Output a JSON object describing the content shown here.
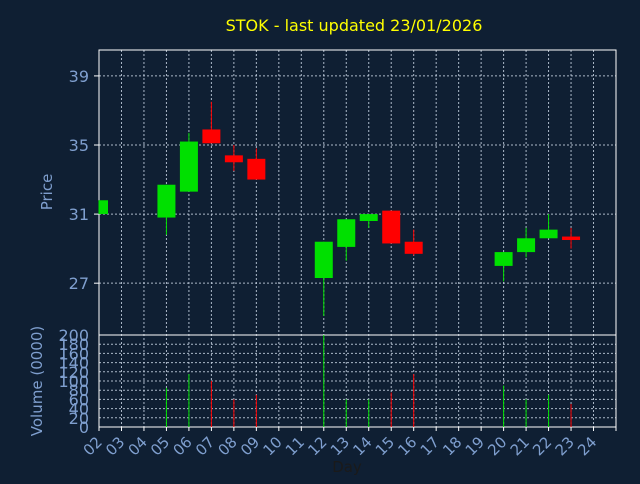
{
  "colors": {
    "background": "#0f1f33",
    "frame": "#ffffff",
    "grid": "#c8d4e4",
    "title": "#ffff00",
    "label": "#7f9fcf",
    "up": "#00e000",
    "down": "#ff0000"
  },
  "chart_data": {
    "type": "candlestick",
    "title": "STOK - last updated 23/01/2026",
    "xlabel": "Day",
    "ylabel_price": "Price",
    "ylabel_volume": "Volume (0000)",
    "x_ticks": [
      "02",
      "03",
      "04",
      "05",
      "06",
      "07",
      "08",
      "09",
      "10",
      "11",
      "12",
      "13",
      "14",
      "15",
      "16",
      "17",
      "18",
      "19",
      "20",
      "21",
      "22",
      "23",
      "24"
    ],
    "price_ticks": [
      27,
      31,
      35,
      39
    ],
    "price_range": [
      24.0,
      40.5
    ],
    "volume_ticks": [
      0,
      20,
      40,
      60,
      80,
      100,
      120,
      140,
      160,
      180,
      200
    ],
    "volume_range": [
      0,
      200
    ],
    "grid": true,
    "candles": [
      {
        "day": "02",
        "open": 31.0,
        "close": 31.8,
        "high": 31.8,
        "low": 31.0,
        "volume": 0
      },
      {
        "day": "05",
        "open": 30.8,
        "close": 32.7,
        "high": 32.7,
        "low": 29.8,
        "volume": 85
      },
      {
        "day": "06",
        "open": 32.3,
        "close": 35.2,
        "high": 35.7,
        "low": 32.3,
        "volume": 115
      },
      {
        "day": "07",
        "open": 35.9,
        "close": 35.1,
        "high": 37.5,
        "low": 35.1,
        "volume": 100
      },
      {
        "day": "08",
        "open": 34.4,
        "close": 34.0,
        "high": 35.0,
        "low": 33.5,
        "volume": 60
      },
      {
        "day": "09",
        "open": 34.2,
        "close": 33.0,
        "high": 34.8,
        "low": 33.0,
        "volume": 70
      },
      {
        "day": "12",
        "open": 27.3,
        "close": 29.4,
        "high": 29.4,
        "low": 25.1,
        "volume": 200
      },
      {
        "day": "13",
        "open": 29.1,
        "close": 30.7,
        "high": 30.7,
        "low": 28.3,
        "volume": 60
      },
      {
        "day": "14",
        "open": 30.6,
        "close": 31.0,
        "high": 31.0,
        "low": 30.2,
        "volume": 60
      },
      {
        "day": "15",
        "open": 31.2,
        "close": 29.3,
        "high": 31.2,
        "low": 29.3,
        "volume": 75
      },
      {
        "day": "16",
        "open": 29.4,
        "close": 28.7,
        "high": 30.1,
        "low": 28.6,
        "volume": 115
      },
      {
        "day": "20",
        "open": 28.0,
        "close": 28.8,
        "high": 28.8,
        "low": 27.1,
        "volume": 90
      },
      {
        "day": "21",
        "open": 28.8,
        "close": 29.6,
        "high": 30.2,
        "low": 28.5,
        "volume": 60
      },
      {
        "day": "22",
        "open": 29.6,
        "close": 30.1,
        "high": 31.0,
        "low": 29.6,
        "volume": 70
      },
      {
        "day": "23",
        "open": 29.7,
        "close": 29.5,
        "high": 30.2,
        "low": 29.0,
        "volume": 50
      }
    ]
  }
}
